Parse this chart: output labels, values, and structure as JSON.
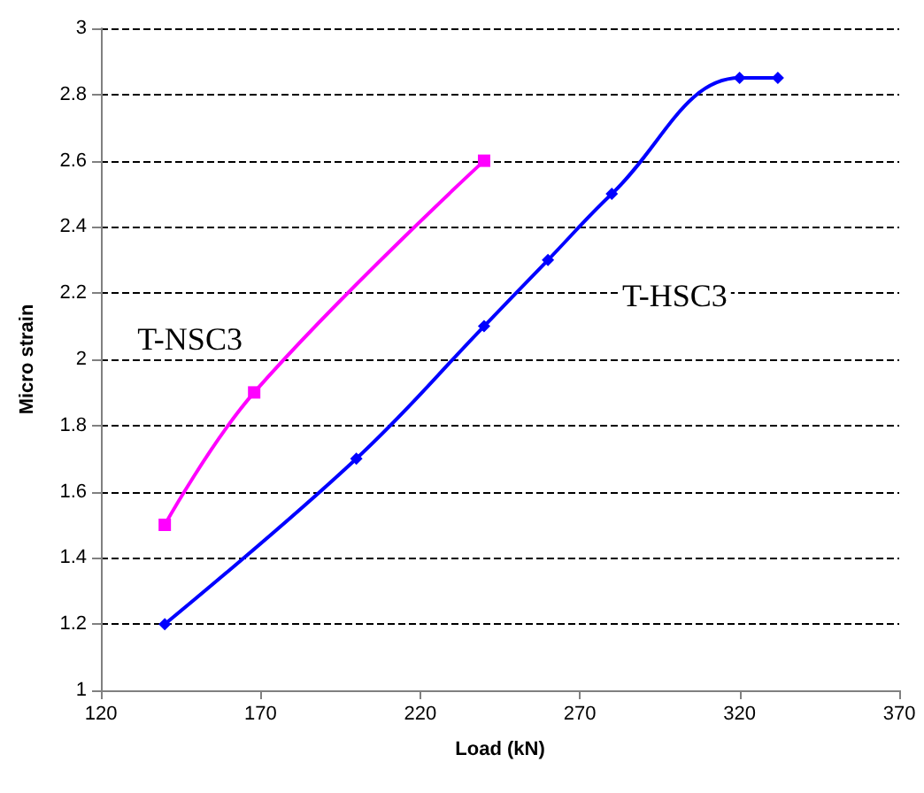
{
  "chart_data": {
    "type": "line",
    "xlabel": "Load (kN)",
    "ylabel": "Micro strain",
    "xlim": [
      120,
      370
    ],
    "xticks": [
      120,
      170,
      220,
      270,
      320,
      370
    ],
    "ylim": [
      1,
      3
    ],
    "yticks": [
      1,
      1.2,
      1.4,
      1.6,
      1.8,
      2,
      2.2,
      2.4,
      2.6,
      2.8,
      3
    ],
    "grid": "y",
    "legend": false,
    "series": [
      {
        "name": "T-NSC3",
        "color": "#ff00ff",
        "marker": "square",
        "x": [
          140,
          168,
          240
        ],
        "values": [
          1.5,
          1.9,
          2.6
        ]
      },
      {
        "name": "T-HSC3",
        "color": "#0000ff",
        "marker": "diamond",
        "x": [
          140,
          200,
          240,
          260,
          280,
          320,
          332
        ],
        "values": [
          1.2,
          1.7,
          2.1,
          2.3,
          2.5,
          2.85,
          2.85
        ]
      }
    ]
  }
}
